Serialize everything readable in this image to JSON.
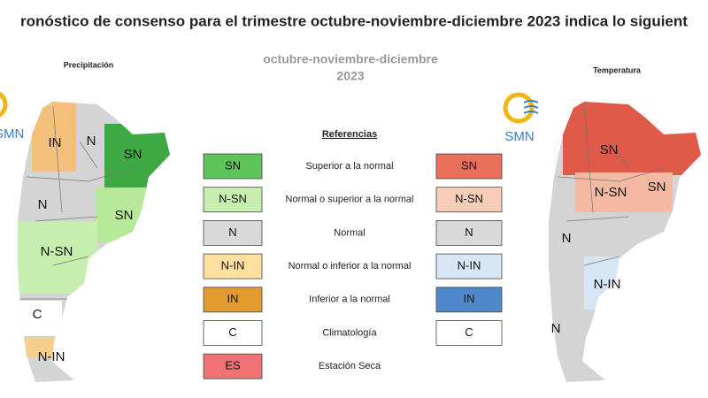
{
  "header": {
    "title": "ronóstico de consenso para el trimestre octubre-noviembre-diciembre 2023 indica lo siguient"
  },
  "period": {
    "line1": "octubre-noviembre-diciembre",
    "line2": "2023"
  },
  "maps": [
    {
      "title": "Precipitación",
      "logo": "SMN",
      "labels": [
        "IN",
        "N",
        "SN",
        "N",
        "SN",
        "N-SN",
        "C",
        "N-IN"
      ]
    },
    {
      "title": "Temperatura",
      "logo": "SMN",
      "labels": [
        "SN",
        "N-SN",
        "SN",
        "N",
        "N-IN",
        "N"
      ]
    }
  ],
  "legend": {
    "title": "Referencias",
    "rows": [
      {
        "left": "SN",
        "left_color": "#5cc45a",
        "description": "Superior a la normal",
        "right": "SN",
        "right_color": "#e9705a"
      },
      {
        "left": "N-SN",
        "left_color": "#c6eeae",
        "description": "Normal o superior a la normal",
        "right": "N-SN",
        "right_color": "#f6cdb8"
      },
      {
        "left": "N",
        "left_color": "#d9d9d9",
        "description": "Normal",
        "right": "N",
        "right_color": "#d9d9d9"
      },
      {
        "left": "N-IN",
        "left_color": "#fde0a0",
        "description": "Normal o inferior a la normal",
        "right": "N-IN",
        "right_color": "#d6e6f4"
      },
      {
        "left": "IN",
        "left_color": "#e39b2f",
        "description": "Inferior a la normal",
        "right": "IN",
        "right_color": "#4f88cc"
      },
      {
        "left": "C",
        "left_color": "#ffffff",
        "description": "Climatología",
        "right": "C",
        "right_color": "#ffffff"
      },
      {
        "left": "ES",
        "left_color": "#f07272",
        "description": "Estación Seca"
      }
    ]
  }
}
